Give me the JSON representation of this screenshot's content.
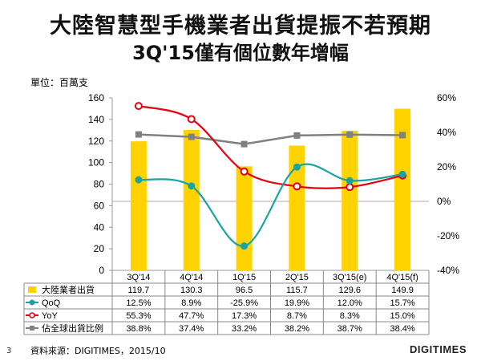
{
  "header": {
    "title_line1": "大陸智慧型手機業者出貨提振不若預期",
    "title_line2": "3Q'15僅有個位數年增幅"
  },
  "unit_label": "單位：百萬支",
  "footer": {
    "page_number": "3",
    "source": "資料來源：DIGITIMES，2015/10",
    "brand": "DIGITIMES"
  },
  "colors": {
    "bar": "#FFD200",
    "qoq": "#19A3A3",
    "yoy": "#E60012",
    "share": "#808080",
    "midline": "#C0A0A0"
  },
  "chart_data": {
    "type": "bar+line",
    "categories": [
      "3Q'14",
      "4Q'14",
      "1Q'15",
      "2Q'15",
      "3Q'15(e)",
      "4Q'15(f)"
    ],
    "left_axis": {
      "min": 0,
      "max": 160,
      "step": 20,
      "ticks": [
        "0",
        "20",
        "40",
        "60",
        "80",
        "100",
        "120",
        "140",
        "160"
      ]
    },
    "right_axis": {
      "min": -40,
      "max": 60,
      "step": 20,
      "ticks": [
        "-40%",
        "-20%",
        "0%",
        "20%",
        "40%",
        "60%"
      ]
    },
    "series": [
      {
        "name": "大陸業者出貨",
        "kind": "bar",
        "axis": "left",
        "values": [
          119.7,
          130.3,
          96.5,
          115.7,
          129.6,
          149.9
        ],
        "labels": [
          "119.7",
          "130.3",
          "96.5",
          "115.7",
          "129.6",
          "149.9"
        ]
      },
      {
        "name": "QoQ",
        "kind": "line",
        "axis": "right",
        "values": [
          12.5,
          8.9,
          -25.9,
          19.9,
          12.0,
          15.7
        ],
        "labels": [
          "12.5%",
          "8.9%",
          "-25.9%",
          "19.9%",
          "12.0%",
          "15.7%"
        ]
      },
      {
        "name": "YoY",
        "kind": "line",
        "axis": "right",
        "values": [
          55.3,
          47.7,
          17.3,
          8.7,
          8.3,
          15.0
        ],
        "labels": [
          "55.3%",
          "47.7%",
          "17.3%",
          "8.7%",
          "8.3%",
          "15.0%"
        ]
      },
      {
        "name": "佔全球出貨比例",
        "kind": "line",
        "axis": "right",
        "values": [
          38.8,
          37.4,
          33.2,
          38.2,
          38.7,
          38.4
        ],
        "labels": [
          "38.8%",
          "37.4%",
          "33.2%",
          "38.2%",
          "38.7%",
          "38.4%"
        ]
      }
    ]
  }
}
